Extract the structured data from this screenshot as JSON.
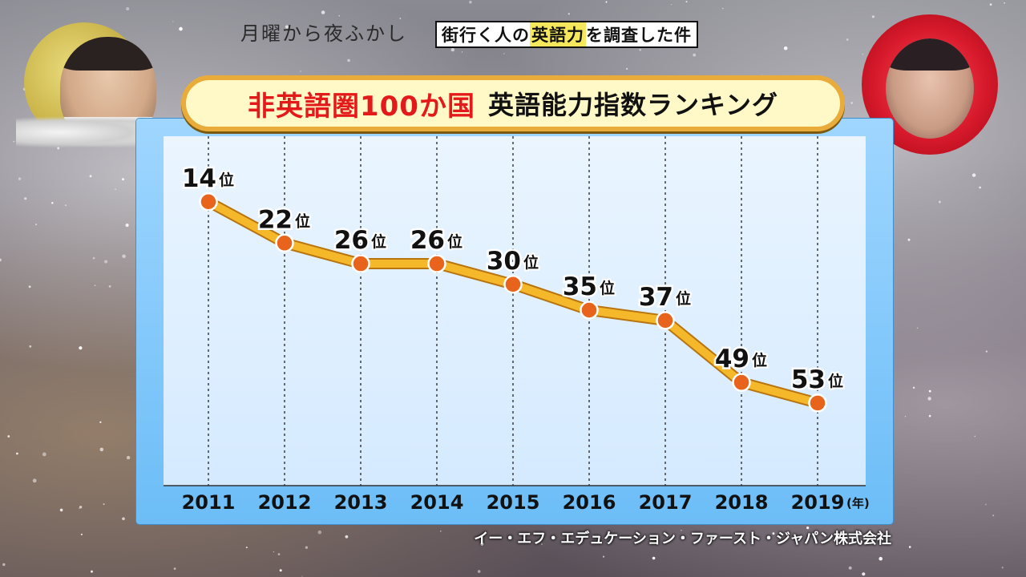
{
  "show": {
    "logo_text": "月曜から夜ふかし",
    "caption_parts": [
      "街行く人の",
      "英語力",
      "を調査した件"
    ]
  },
  "title": {
    "red_part": "非英語圏100か国",
    "black_part": "英語能力指数ランキング"
  },
  "source": "イー・エフ・エデュケーション・ファースト・ジャパン株式会社",
  "colors": {
    "line": "#f5b82a",
    "marker": "#e8641c",
    "title_red": "#e41a1a",
    "title_border": "#e9ac3a",
    "panel": "#6cbdf7"
  },
  "chart_data": {
    "type": "line",
    "title": "非英語圏100か国 英語能力指数ランキング",
    "x": [
      "2011",
      "2012",
      "2013",
      "2014",
      "2015",
      "2016",
      "2017",
      "2018",
      "2019"
    ],
    "values": [
      14,
      22,
      26,
      26,
      30,
      35,
      37,
      49,
      53
    ],
    "value_suffix": "位",
    "x_unit": "(年)",
    "y_inverted": true,
    "ylim": [
      10,
      60
    ],
    "grid": "vertical dashed"
  }
}
